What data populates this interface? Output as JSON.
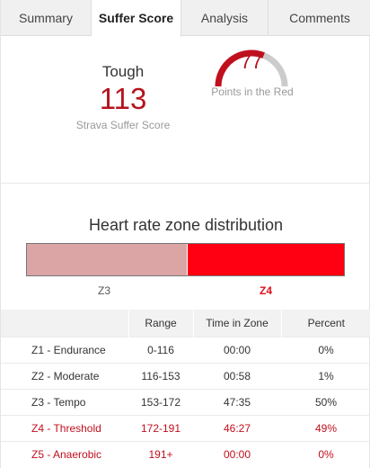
{
  "tabs": [
    "Summary",
    "Suffer Score",
    "Analysis",
    "Comments"
  ],
  "active_tab": "Suffer Score",
  "score": {
    "word": "Tough",
    "value": "113",
    "caption": "Strava Suffer Score"
  },
  "gauge": {
    "value": "77",
    "caption": "Points in the Red",
    "fill_fraction": 0.62,
    "colors": {
      "fill": "#c0101e",
      "track": "#cccccc"
    }
  },
  "distribution": {
    "title": "Heart rate zone distribution",
    "segments": [
      {
        "label": "Z3",
        "fraction": 0.507,
        "color": "#dba5a5"
      },
      {
        "label": "Z4",
        "fraction": 0.493,
        "color": "#ff0012"
      }
    ]
  },
  "table": {
    "headers": [
      "",
      "Range",
      "Time in Zone",
      "Percent"
    ],
    "rows": [
      {
        "zone": "Z1 - Endurance",
        "range": "0-116",
        "time": "00:00",
        "percent": "0%"
      },
      {
        "zone": "Z2 - Moderate",
        "range": "116-153",
        "time": "00:58",
        "percent": "1%"
      },
      {
        "zone": "Z3 - Tempo",
        "range": "153-172",
        "time": "47:35",
        "percent": "50%"
      },
      {
        "zone": "Z4 - Threshold",
        "range": "172-191",
        "time": "46:27",
        "percent": "49%"
      },
      {
        "zone": "Z5 - Anaerobic",
        "range": "191+",
        "time": "00:00",
        "percent": "0%"
      }
    ]
  }
}
